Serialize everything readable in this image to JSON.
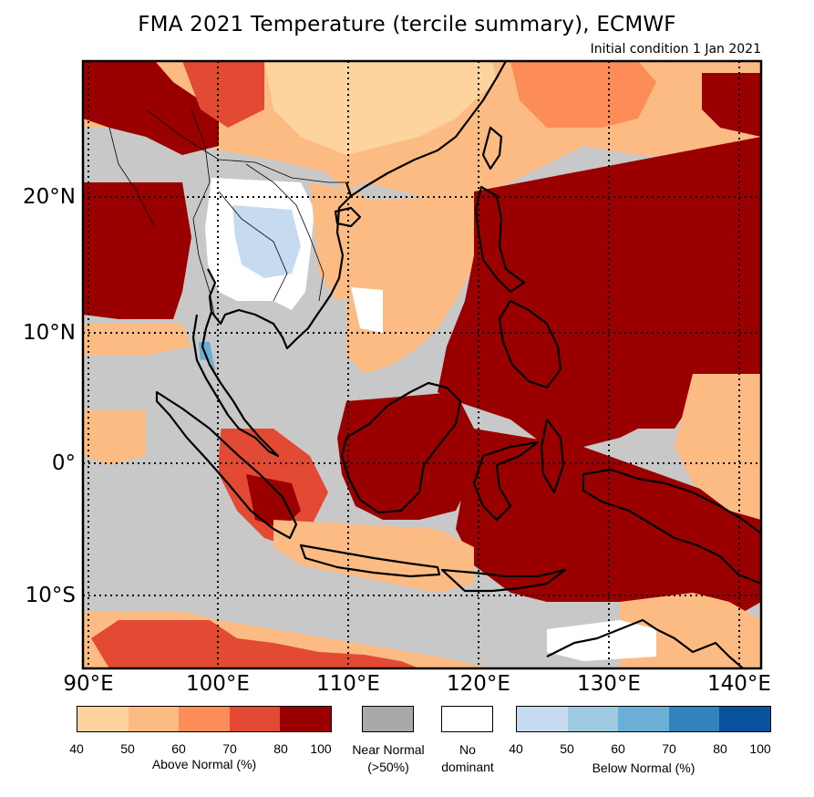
{
  "title": "FMA 2021 Temperature (tercile summary), ECMWF",
  "subtitle": "Initial condition 1 Jan 2021",
  "axes": {
    "lon_labels": [
      "90°E",
      "100°E",
      "110°E",
      "120°E",
      "130°E",
      "140°E"
    ],
    "lat_labels": [
      "20°N",
      "10°N",
      "0°",
      "10°S"
    ],
    "lon_range": [
      90,
      141
    ],
    "lat_range": [
      -15.5,
      30
    ]
  },
  "legend": {
    "above": {
      "caption": "Above Normal (%)",
      "colors": [
        "#fdd49e",
        "#fdbb84",
        "#fc8d59",
        "#e34a33",
        "#9b0000"
      ],
      "ticks": [
        "40",
        "50",
        "60",
        "70",
        "80",
        "100"
      ]
    },
    "near": {
      "caption_line1": "Near Normal",
      "caption_line2": "(>50%)",
      "color": "#a9a9a9"
    },
    "none": {
      "caption_line1": "No",
      "caption_line2": "dominant",
      "color": "#ffffff"
    },
    "below": {
      "caption": "Below Normal (%)",
      "colors": [
        "#c6dbef",
        "#9ecae1",
        "#6baed6",
        "#3182bd",
        "#08519c"
      ],
      "ticks": [
        "40",
        "50",
        "60",
        "70",
        "80",
        "100"
      ]
    }
  },
  "map_colors": {
    "dark_red": "#9b0000",
    "red": "#e34a33",
    "orange": "#fc8d59",
    "light_orange": "#fdbb84",
    "pale": "#fdd49e",
    "grey": "#c8c8c8",
    "white": "#ffffff",
    "light_blue": "#c6dbef",
    "blue": "#6baed6"
  }
}
